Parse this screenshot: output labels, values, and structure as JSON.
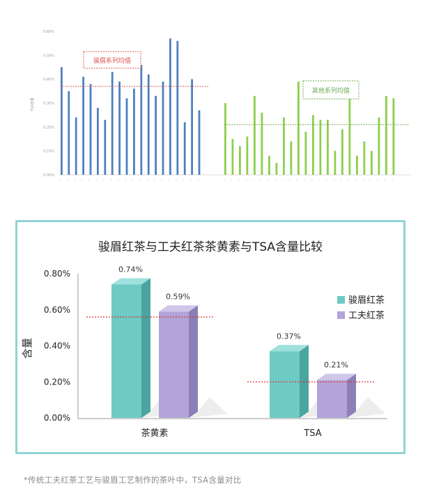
{
  "caption": "*传统工夫红茶工艺与骏眉工艺制作的茶叶中，TSA含量对比",
  "chart_data": [
    {
      "type": "bar",
      "ylabel": "TSA含量",
      "yticks": [
        "0.00%",
        "0.10%",
        "0.20%",
        "0.30%",
        "0.40%",
        "0.50%",
        "0.60%"
      ],
      "ylim": [
        0,
        0.6
      ],
      "grid": false,
      "colors": {
        "junmei": "#4f7fbf",
        "other": "#8ccf4a",
        "junmei_mean_line": "#e05050",
        "other_mean_line": "#6aa84f"
      },
      "series": [
        {
          "name": "骏眉系列均值",
          "mean": 0.37,
          "values": [
            0.45,
            0.35,
            0.24,
            0.41,
            0.38,
            0.28,
            0.23,
            0.43,
            0.39,
            0.32,
            0.36,
            0.46,
            0.42,
            0.33,
            0.39,
            0.57,
            0.56,
            0.22,
            0.4,
            0.27
          ]
        },
        {
          "name": "其他系列均值",
          "mean": 0.21,
          "values": [
            0.3,
            0.15,
            0.12,
            0.16,
            0.33,
            0.26,
            0.08,
            0.05,
            0.24,
            0.14,
            0.39,
            0.18,
            0.25,
            0.23,
            0.23,
            0.1,
            0.19,
            0.39,
            0.08,
            0.14,
            0.1,
            0.24,
            0.33,
            0.32
          ]
        }
      ]
    },
    {
      "type": "bar",
      "title": "骏眉红茶与工夫红茶茶黄素与TSA含量比较",
      "ylabel": "含量",
      "categories": [
        "茶黄素",
        "TSA"
      ],
      "yticks": [
        "0.00%",
        "0.20%",
        "0.40%",
        "0.60%",
        "0.80%"
      ],
      "ylim": [
        0,
        0.8
      ],
      "legend_position": "top-right",
      "colors": {
        "骏眉红茶": "#6dcac4",
        "工夫红茶": "#b2a4d8",
        "reference_line": "#e03030"
      },
      "series": [
        {
          "name": "骏眉红茶",
          "values": [
            0.74,
            0.37
          ],
          "labels": [
            "0.74%",
            "0.37%"
          ]
        },
        {
          "name": "工夫红茶",
          "values": [
            0.59,
            0.21
          ],
          "labels": [
            "0.59%",
            "0.21%"
          ]
        }
      ],
      "reference_lines": [
        0.56,
        0.2
      ]
    }
  ]
}
